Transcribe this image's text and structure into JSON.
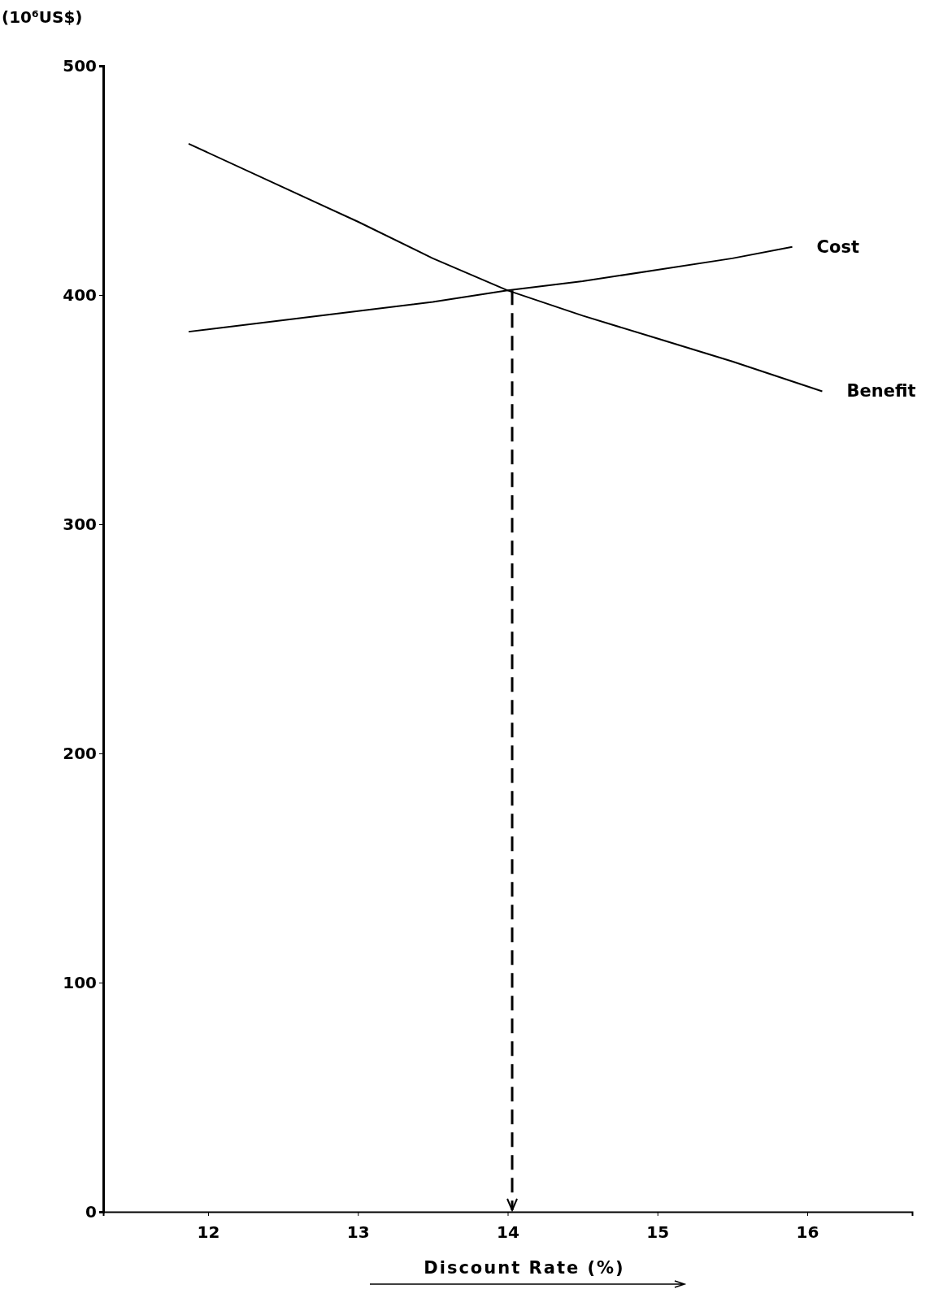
{
  "chart_data": {
    "type": "line",
    "xlabel": "Discount Rate (%)",
    "ylabel": "(10⁶US$)",
    "xlim": [
      11.3,
      16.7
    ],
    "ylim": [
      0,
      500
    ],
    "xticks": [
      12,
      13,
      14,
      15,
      16
    ],
    "yticks": [
      0,
      100,
      200,
      300,
      400,
      500
    ],
    "grid": false,
    "marker": "none",
    "ref_lines": [
      {
        "axis": "x",
        "value": 14.03,
        "color": "#000000",
        "line_style": "dashed"
      }
    ],
    "series": [
      {
        "name": "Cost",
        "color": "#000000",
        "x": [
          11.87,
          12.5,
          13,
          13.5,
          14,
          14.5,
          15,
          15.5,
          15.9
        ],
        "values": [
          384,
          389,
          393,
          397,
          402,
          406,
          411,
          416,
          421
        ]
      },
      {
        "name": "Benefit",
        "color": "#000000",
        "x": [
          11.87,
          12.5,
          13,
          13.5,
          14,
          14.5,
          15,
          15.5,
          16.1
        ],
        "values": [
          466,
          447,
          432,
          416,
          402,
          391,
          381,
          371,
          358
        ]
      }
    ]
  }
}
